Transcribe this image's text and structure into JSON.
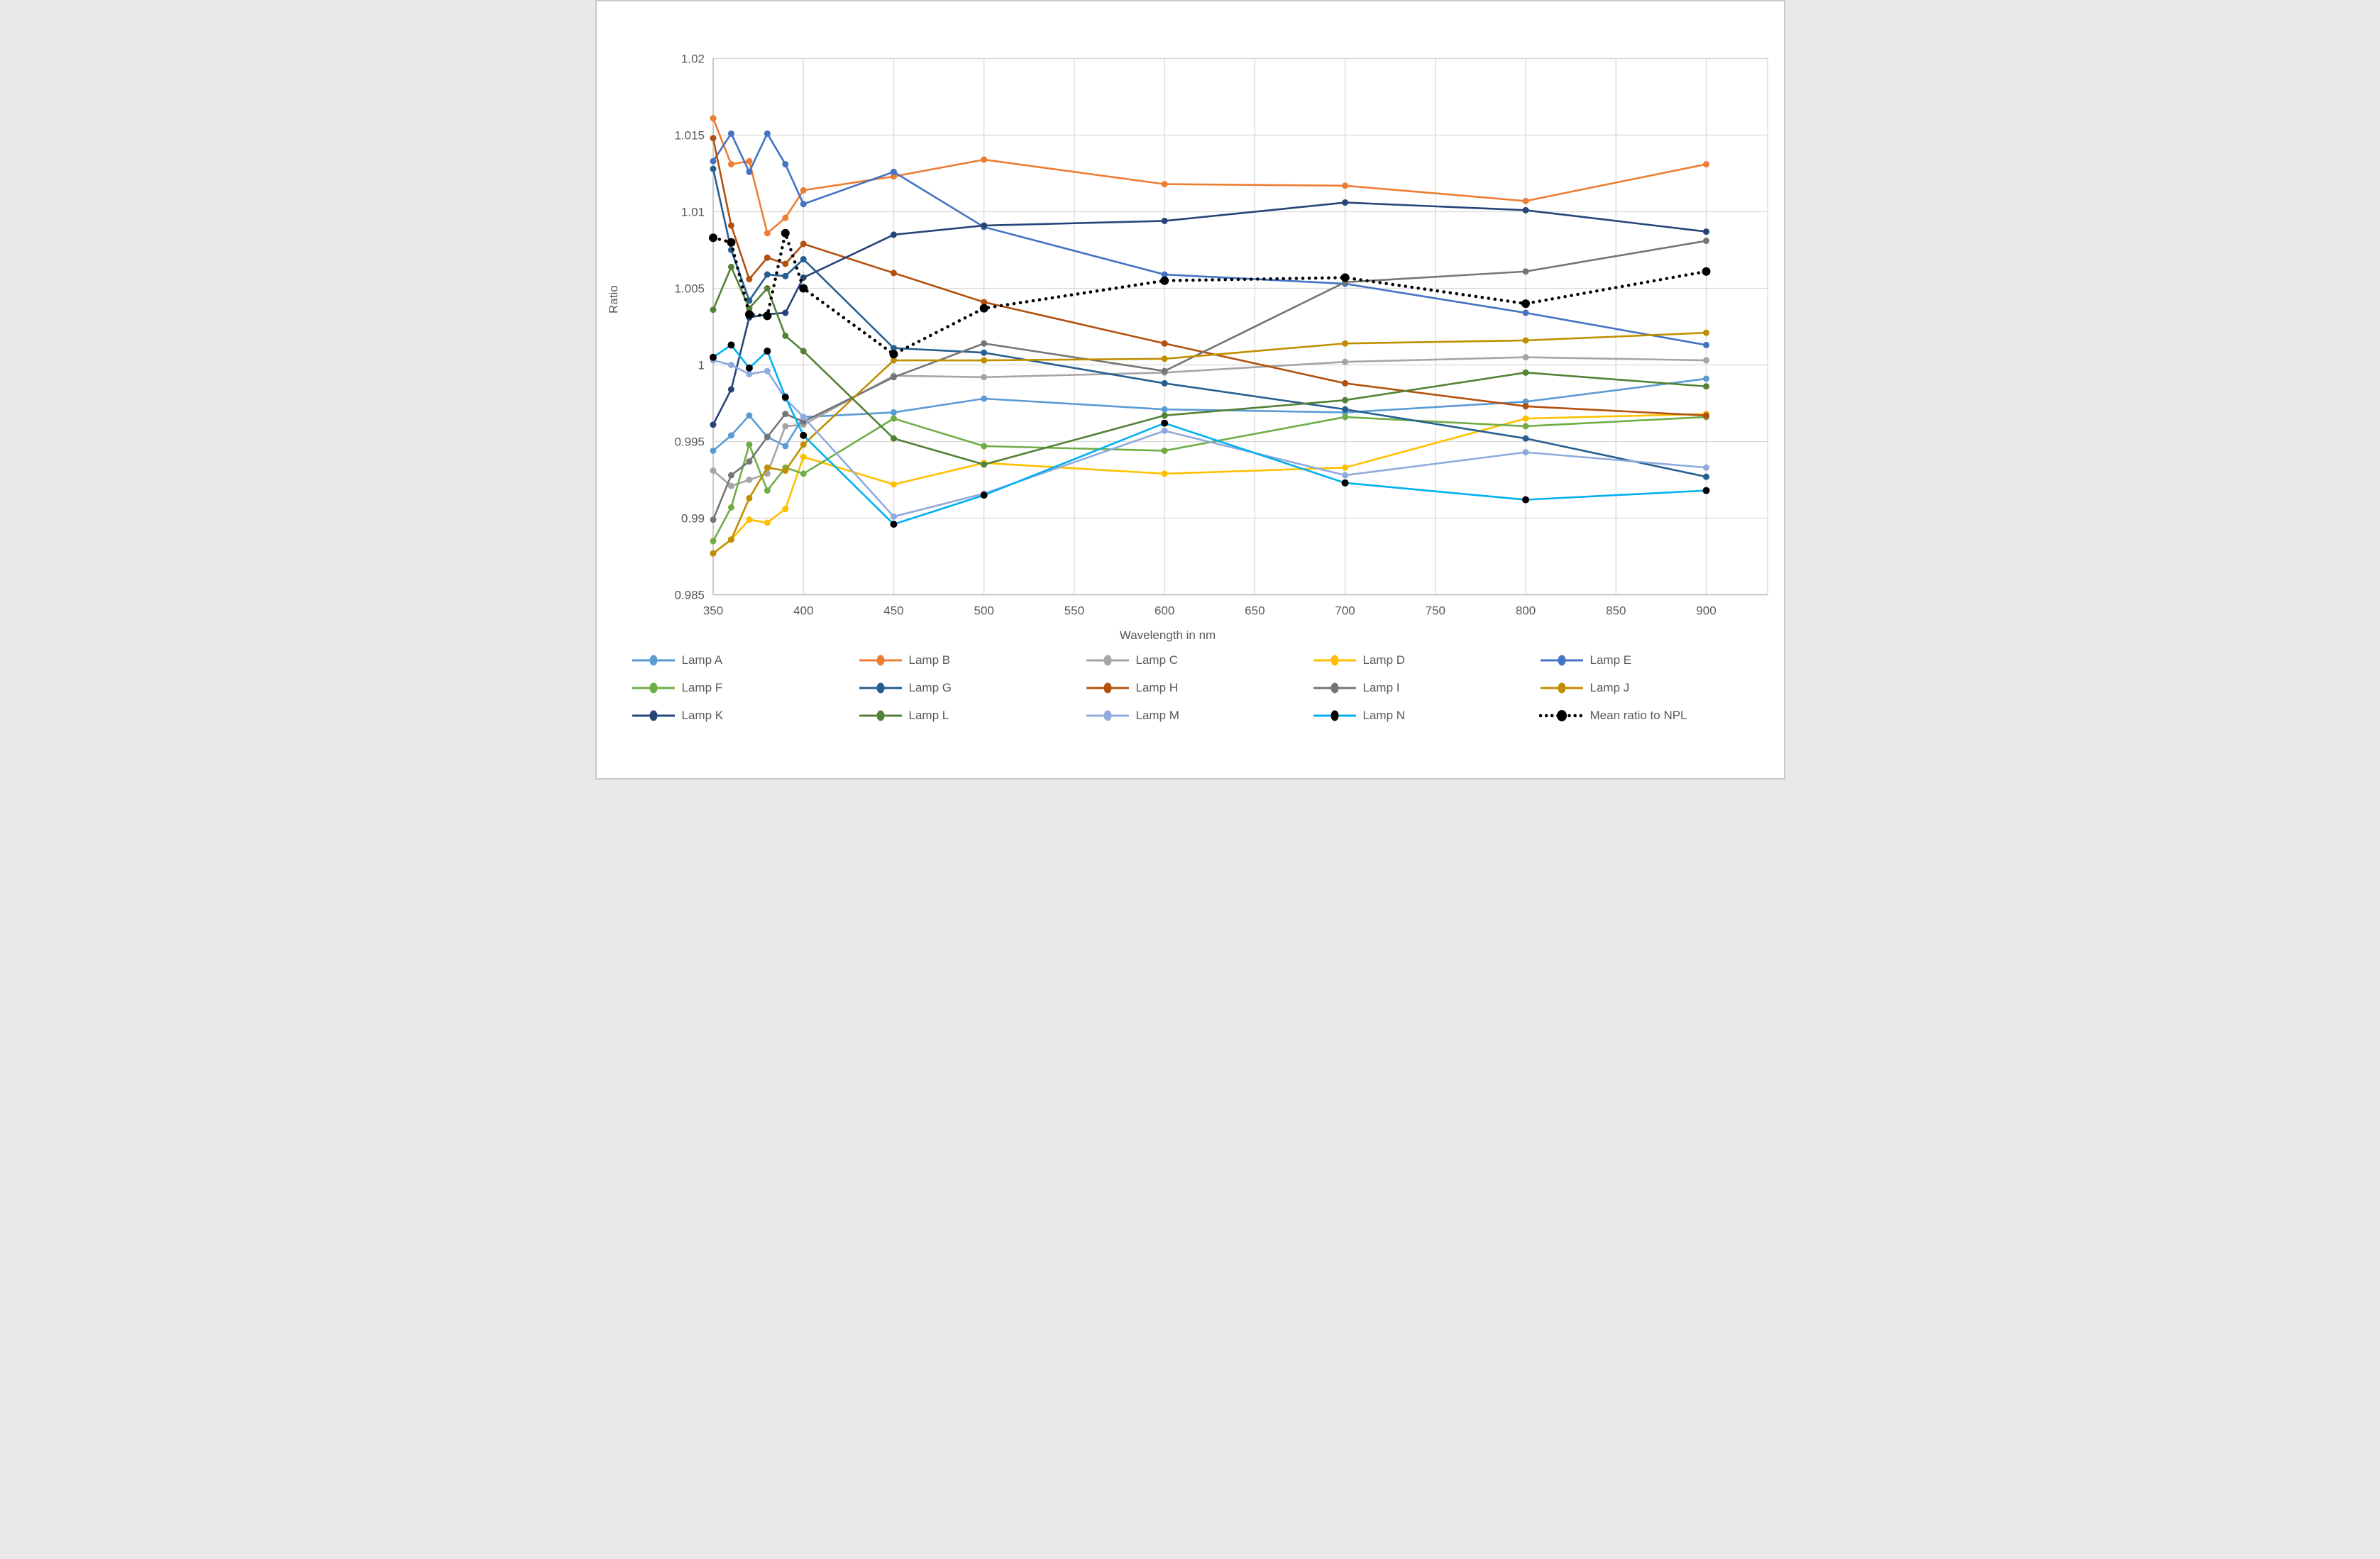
{
  "chart_data": {
    "type": "line",
    "title": "",
    "xlabel": "Wavelength in nm",
    "ylabel": "Ratio",
    "x": [
      350,
      360,
      370,
      380,
      390,
      400,
      450,
      500,
      600,
      700,
      800,
      900
    ],
    "x_axis": {
      "min": 350,
      "max": 934,
      "tick_labels": [
        "350",
        "400",
        "450",
        "500",
        "550",
        "600",
        "650",
        "700",
        "750",
        "800",
        "850",
        "900"
      ],
      "tick_values": [
        350,
        400,
        450,
        500,
        550,
        600,
        650,
        700,
        750,
        800,
        850,
        900
      ],
      "grid": true
    },
    "y_axis": {
      "min": 0.985,
      "max": 1.02,
      "tick_labels": [
        "1.02",
        "1.015",
        "1.01",
        "1.005",
        "1",
        "0.995",
        "0.99",
        "0.985"
      ],
      "tick_values": [
        1.02,
        1.015,
        1.01,
        1.005,
        1.0,
        0.995,
        0.99,
        0.985
      ],
      "grid": true
    },
    "grid_color": "#d9d9d9",
    "axis_color": "#bfbfbf",
    "legend_position": "bottom",
    "series": [
      {
        "name": "Lamp A",
        "color": "#5b9bd5",
        "values": [
          0.9944,
          0.9954,
          0.9967,
          0.9953,
          0.9947,
          0.9966,
          0.9969,
          0.9978,
          0.9971,
          0.9969,
          0.9976,
          0.9991
        ]
      },
      {
        "name": "Lamp B",
        "color": "#ed7d31",
        "values": [
          1.0161,
          1.0131,
          1.0133,
          1.0086,
          1.0096,
          1.0114,
          1.0123,
          1.0134,
          1.0118,
          1.0117,
          1.0107,
          1.0131
        ]
      },
      {
        "name": "Lamp C",
        "color": "#a5a5a5",
        "values": [
          0.9931,
          0.9921,
          0.9925,
          0.9929,
          0.996,
          0.9961,
          0.9993,
          0.9992,
          0.9995,
          1.0002,
          1.0005,
          1.0003
        ]
      },
      {
        "name": "Lamp D",
        "color": "#ffc000",
        "values": [
          0.9877,
          0.9886,
          0.9899,
          0.9897,
          0.9906,
          0.994,
          0.9922,
          0.9936,
          0.9929,
          0.9933,
          0.9965,
          0.9968
        ]
      },
      {
        "name": "Lamp E",
        "color": "#4472c4",
        "values": [
          1.0133,
          1.0151,
          1.0126,
          1.0151,
          1.0131,
          1.0105,
          1.0126,
          1.009,
          1.0059,
          1.0053,
          1.0034,
          1.0013
        ]
      },
      {
        "name": "Lamp F",
        "color": "#70ad47",
        "values": [
          0.9885,
          0.9907,
          0.9948,
          0.9918,
          0.9933,
          0.9929,
          0.9965,
          0.9947,
          0.9944,
          0.9966,
          0.996,
          0.9966
        ]
      },
      {
        "name": "Lamp G",
        "color": "#255e91",
        "values": [
          1.0128,
          1.0075,
          1.0042,
          1.0059,
          1.0058,
          1.0069,
          1.0011,
          1.0008,
          0.9988,
          0.9971,
          0.9952,
          0.9927
        ]
      },
      {
        "name": "Lamp H",
        "color": "#b3500e",
        "values": [
          1.0148,
          1.0091,
          1.0056,
          1.007,
          1.0066,
          1.0079,
          1.006,
          1.0041,
          1.0014,
          0.9988,
          0.9973,
          0.9967
        ]
      },
      {
        "name": "Lamp I",
        "color": "#757575",
        "values": [
          0.9899,
          0.9928,
          0.9937,
          0.9953,
          0.9968,
          0.9963,
          0.9992,
          1.0014,
          0.9996,
          1.0054,
          1.0061,
          1.0081
        ]
      },
      {
        "name": "Lamp J",
        "color": "#bf8f00",
        "values": [
          0.9877,
          0.9886,
          0.9913,
          0.9933,
          0.9931,
          0.9948,
          1.0003,
          1.0003,
          1.0004,
          1.0014,
          1.0016,
          1.0021
        ]
      },
      {
        "name": "Lamp K",
        "color": "#264478",
        "values": [
          0.9961,
          0.9984,
          1.0031,
          1.0033,
          1.0034,
          1.0057,
          1.0085,
          1.0091,
          1.0094,
          1.0106,
          1.0101,
          1.0087
        ]
      },
      {
        "name": "Lamp L",
        "color": "#538135",
        "values": [
          1.0036,
          1.0064,
          1.0037,
          1.005,
          1.0019,
          1.0009,
          0.9952,
          0.9935,
          0.9967,
          0.9977,
          0.9995,
          0.9986
        ]
      },
      {
        "name": "Lamp M",
        "color": "#8faadc",
        "values": [
          1.0003,
          1.0,
          0.9994,
          0.9996,
          0.9978,
          0.9966,
          0.9901,
          0.9916,
          0.9957,
          0.9928,
          0.9943,
          0.9933
        ]
      },
      {
        "name": "Lamp N",
        "color": "#00b0f0",
        "marker_color": "#000000",
        "values": [
          1.0005,
          1.0013,
          0.9998,
          1.0009,
          0.9979,
          0.9954,
          0.9896,
          0.9915,
          0.9962,
          0.9923,
          0.9912,
          0.9918
        ]
      },
      {
        "name": "Mean ratio to NPL",
        "color": "#000000",
        "style": "dotted",
        "values": [
          1.0083,
          1.008,
          1.0033,
          1.0032,
          1.0086,
          1.005,
          1.0007,
          1.0037,
          1.0055,
          1.0057,
          1.004,
          1.0061
        ]
      }
    ]
  },
  "labels": {
    "x_axis_title": "Wavelength in nm",
    "y_axis_title": "Ratio"
  }
}
